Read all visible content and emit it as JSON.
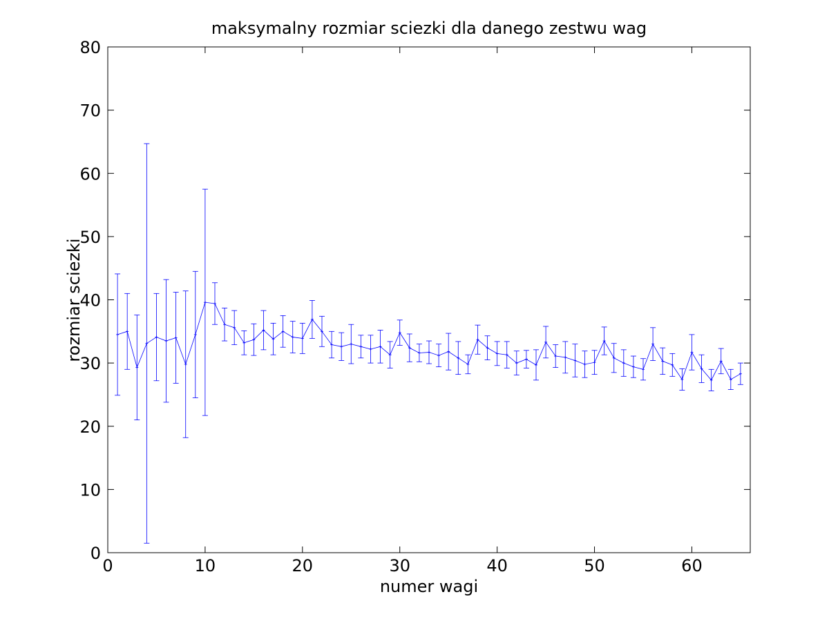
{
  "chart_data": {
    "type": "line",
    "title": "maksymalny rozmiar sciezki dla danego zestwu wag",
    "xlabel": "numer wagi",
    "ylabel": "rozmiar sciezki",
    "xlim": [
      0,
      66
    ],
    "ylim": [
      0,
      80
    ],
    "xticks": [
      0,
      10,
      20,
      30,
      40,
      50,
      60
    ],
    "yticks": [
      0,
      10,
      20,
      30,
      40,
      50,
      60,
      70,
      80
    ],
    "grid": false,
    "colors": {
      "series": "#0000ff",
      "axes": "#000000",
      "background": "#ffffff"
    },
    "series": [
      {
        "x": [
          1,
          2,
          3,
          4,
          5,
          6,
          7,
          8,
          9,
          10,
          11,
          12,
          13,
          14,
          15,
          16,
          17,
          18,
          19,
          20,
          21,
          22,
          23,
          24,
          25,
          26,
          27,
          28,
          29,
          30,
          31,
          32,
          33,
          34,
          35,
          36,
          37,
          38,
          39,
          40,
          41,
          42,
          43,
          44,
          45,
          46,
          47,
          48,
          49,
          50,
          51,
          52,
          53,
          54,
          55,
          56,
          57,
          58,
          59,
          60,
          61,
          62,
          63,
          64,
          65
        ],
        "y": [
          34.5,
          35.0,
          29.3,
          33.1,
          34.1,
          33.5,
          34.0,
          29.8,
          34.5,
          39.6,
          39.4,
          36.1,
          35.6,
          33.2,
          33.7,
          35.2,
          33.8,
          35.0,
          34.1,
          33.9,
          36.9,
          35.0,
          32.9,
          32.6,
          33.0,
          32.6,
          32.2,
          32.6,
          31.3,
          34.8,
          32.4,
          31.6,
          31.7,
          31.2,
          31.8,
          30.8,
          29.8,
          33.7,
          32.4,
          31.5,
          31.3,
          30.0,
          30.6,
          29.7,
          33.3,
          31.1,
          30.9,
          30.4,
          29.8,
          30.1,
          33.5,
          30.8,
          30.0,
          29.4,
          29.0,
          33.0,
          30.3,
          29.7,
          27.4,
          31.7,
          29.1,
          27.3,
          30.3,
          27.4,
          28.3
        ],
        "error": [
          9.6,
          6.0,
          8.3,
          31.6,
          6.9,
          9.7,
          7.2,
          11.6,
          10.0,
          17.9,
          3.3,
          2.6,
          2.7,
          1.9,
          2.5,
          3.1,
          2.5,
          2.5,
          2.5,
          2.4,
          3.0,
          2.4,
          2.1,
          2.2,
          3.1,
          1.8,
          2.2,
          2.6,
          2.1,
          2.0,
          2.2,
          1.4,
          1.8,
          1.8,
          2.9,
          2.6,
          1.5,
          2.3,
          1.9,
          1.9,
          2.1,
          1.9,
          1.4,
          2.4,
          2.5,
          1.8,
          2.5,
          2.6,
          2.1,
          1.9,
          2.2,
          2.3,
          2.1,
          1.7,
          1.7,
          2.6,
          2.1,
          1.8,
          1.7,
          2.8,
          2.2,
          1.7,
          2.0,
          1.6,
          1.7
        ]
      }
    ]
  }
}
